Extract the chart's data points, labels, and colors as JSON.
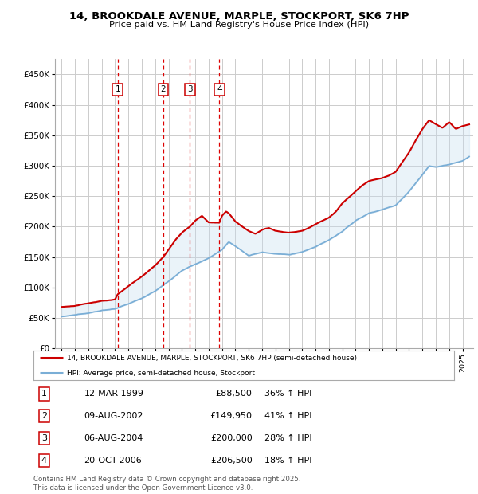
{
  "title": "14, BROOKDALE AVENUE, MARPLE, STOCKPORT, SK6 7HP",
  "subtitle": "Price paid vs. HM Land Registry's House Price Index (HPI)",
  "legend_line1": "14, BROOKDALE AVENUE, MARPLE, STOCKPORT, SK6 7HP (semi-detached house)",
  "legend_line2": "HPI: Average price, semi-detached house, Stockport",
  "footer": "Contains HM Land Registry data © Crown copyright and database right 2025.\nThis data is licensed under the Open Government Licence v3.0.",
  "transactions": [
    {
      "num": 1,
      "date": "12-MAR-1999",
      "price": 88500,
      "pct": "36% ↑ HPI",
      "year": 1999.19
    },
    {
      "num": 2,
      "date": "09-AUG-2002",
      "price": 149950,
      "pct": "41% ↑ HPI",
      "year": 2002.6
    },
    {
      "num": 3,
      "date": "06-AUG-2004",
      "price": 200000,
      "pct": "28% ↑ HPI",
      "year": 2004.6
    },
    {
      "num": 4,
      "date": "20-OCT-2006",
      "price": 206500,
      "pct": "18% ↑ HPI",
      "year": 2006.8
    }
  ],
  "price_line_color": "#cc0000",
  "hpi_line_color": "#7aaed6",
  "fill_color": "#c5ddf0",
  "background_color": "#ffffff",
  "plot_bg_color": "#ffffff",
  "grid_color": "#cccccc",
  "transaction_line_color": "#dd0000",
  "ylim": [
    0,
    475000
  ],
  "yticks": [
    0,
    50000,
    100000,
    150000,
    200000,
    250000,
    300000,
    350000,
    400000,
    450000
  ],
  "xlim_start": 1994.5,
  "xlim_end": 2025.8,
  "hpi_anchors": [
    [
      1995.0,
      52000
    ],
    [
      1996.0,
      55000
    ],
    [
      1997.0,
      58000
    ],
    [
      1998.0,
      62000
    ],
    [
      1999.0,
      65000
    ],
    [
      2000.0,
      73000
    ],
    [
      2001.0,
      82000
    ],
    [
      2002.0,
      94000
    ],
    [
      2003.0,
      110000
    ],
    [
      2004.0,
      128000
    ],
    [
      2005.0,
      138000
    ],
    [
      2006.0,
      148000
    ],
    [
      2007.0,
      162000
    ],
    [
      2007.5,
      175000
    ],
    [
      2008.0,
      168000
    ],
    [
      2009.0,
      152000
    ],
    [
      2010.0,
      158000
    ],
    [
      2011.0,
      155000
    ],
    [
      2012.0,
      154000
    ],
    [
      2013.0,
      158000
    ],
    [
      2014.0,
      167000
    ],
    [
      2015.0,
      178000
    ],
    [
      2016.0,
      192000
    ],
    [
      2017.0,
      210000
    ],
    [
      2018.0,
      222000
    ],
    [
      2019.0,
      228000
    ],
    [
      2020.0,
      235000
    ],
    [
      2021.0,
      258000
    ],
    [
      2022.0,
      285000
    ],
    [
      2022.5,
      300000
    ],
    [
      2023.0,
      298000
    ],
    [
      2024.0,
      302000
    ],
    [
      2025.0,
      308000
    ],
    [
      2025.5,
      315000
    ]
  ],
  "price_anchors": [
    [
      1995.0,
      68000
    ],
    [
      1996.0,
      70000
    ],
    [
      1997.0,
      74000
    ],
    [
      1998.0,
      78000
    ],
    [
      1999.0,
      80000
    ],
    [
      1999.19,
      88500
    ],
    [
      2000.0,
      102000
    ],
    [
      2001.0,
      118000
    ],
    [
      2002.0,
      136000
    ],
    [
      2002.6,
      149950
    ],
    [
      2003.0,
      162000
    ],
    [
      2003.5,
      178000
    ],
    [
      2004.0,
      190000
    ],
    [
      2004.6,
      200000
    ],
    [
      2005.0,
      210000
    ],
    [
      2005.5,
      218000
    ],
    [
      2006.0,
      207000
    ],
    [
      2006.8,
      206500
    ],
    [
      2007.0,
      218000
    ],
    [
      2007.3,
      225000
    ],
    [
      2007.5,
      222000
    ],
    [
      2008.0,
      208000
    ],
    [
      2009.0,
      193000
    ],
    [
      2009.5,
      188000
    ],
    [
      2010.0,
      195000
    ],
    [
      2010.5,
      198000
    ],
    [
      2011.0,
      193000
    ],
    [
      2012.0,
      190000
    ],
    [
      2013.0,
      193000
    ],
    [
      2013.5,
      198000
    ],
    [
      2014.0,
      204000
    ],
    [
      2015.0,
      215000
    ],
    [
      2015.5,
      224000
    ],
    [
      2016.0,
      238000
    ],
    [
      2017.0,
      258000
    ],
    [
      2017.5,
      268000
    ],
    [
      2018.0,
      275000
    ],
    [
      2019.0,
      280000
    ],
    [
      2019.5,
      284000
    ],
    [
      2020.0,
      290000
    ],
    [
      2021.0,
      322000
    ],
    [
      2021.5,
      342000
    ],
    [
      2022.0,
      360000
    ],
    [
      2022.5,
      375000
    ],
    [
      2023.0,
      368000
    ],
    [
      2023.5,
      362000
    ],
    [
      2024.0,
      372000
    ],
    [
      2024.5,
      360000
    ],
    [
      2025.0,
      365000
    ],
    [
      2025.5,
      368000
    ]
  ]
}
